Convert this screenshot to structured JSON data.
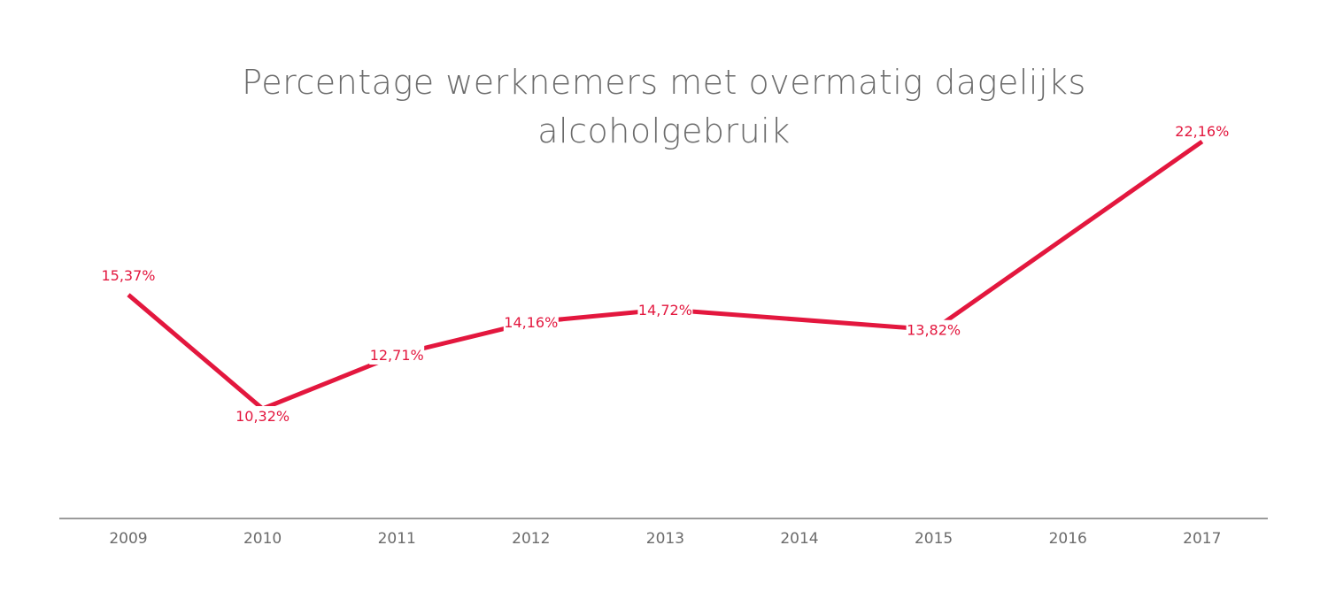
{
  "title_lines": [
    "Percentage werknemers met overmatig dagelijks",
    "alcoholgebruik"
  ],
  "colors": {
    "line": "#e3173e",
    "axis": "#7a7a7a",
    "text": "#6b6b6b"
  },
  "chart_data": {
    "type": "line",
    "title": "Percentage werknemers met overmatig dagelijks alcoholgebruik",
    "xlabel": "",
    "ylabel": "",
    "categories": [
      "2009",
      "2010",
      "2011",
      "2012",
      "2013",
      "2014",
      "2015",
      "2016",
      "2017"
    ],
    "series": [
      {
        "values": [
          15.37,
          10.32,
          12.71,
          14.16,
          14.72,
          null,
          13.82,
          null,
          22.16
        ],
        "labels": [
          "15,37%",
          "10,32%",
          "12,71%",
          "14,16%",
          "14,72%",
          "",
          "13,82%",
          "",
          "22,16%"
        ]
      }
    ],
    "grid": false,
    "legend": "none"
  }
}
